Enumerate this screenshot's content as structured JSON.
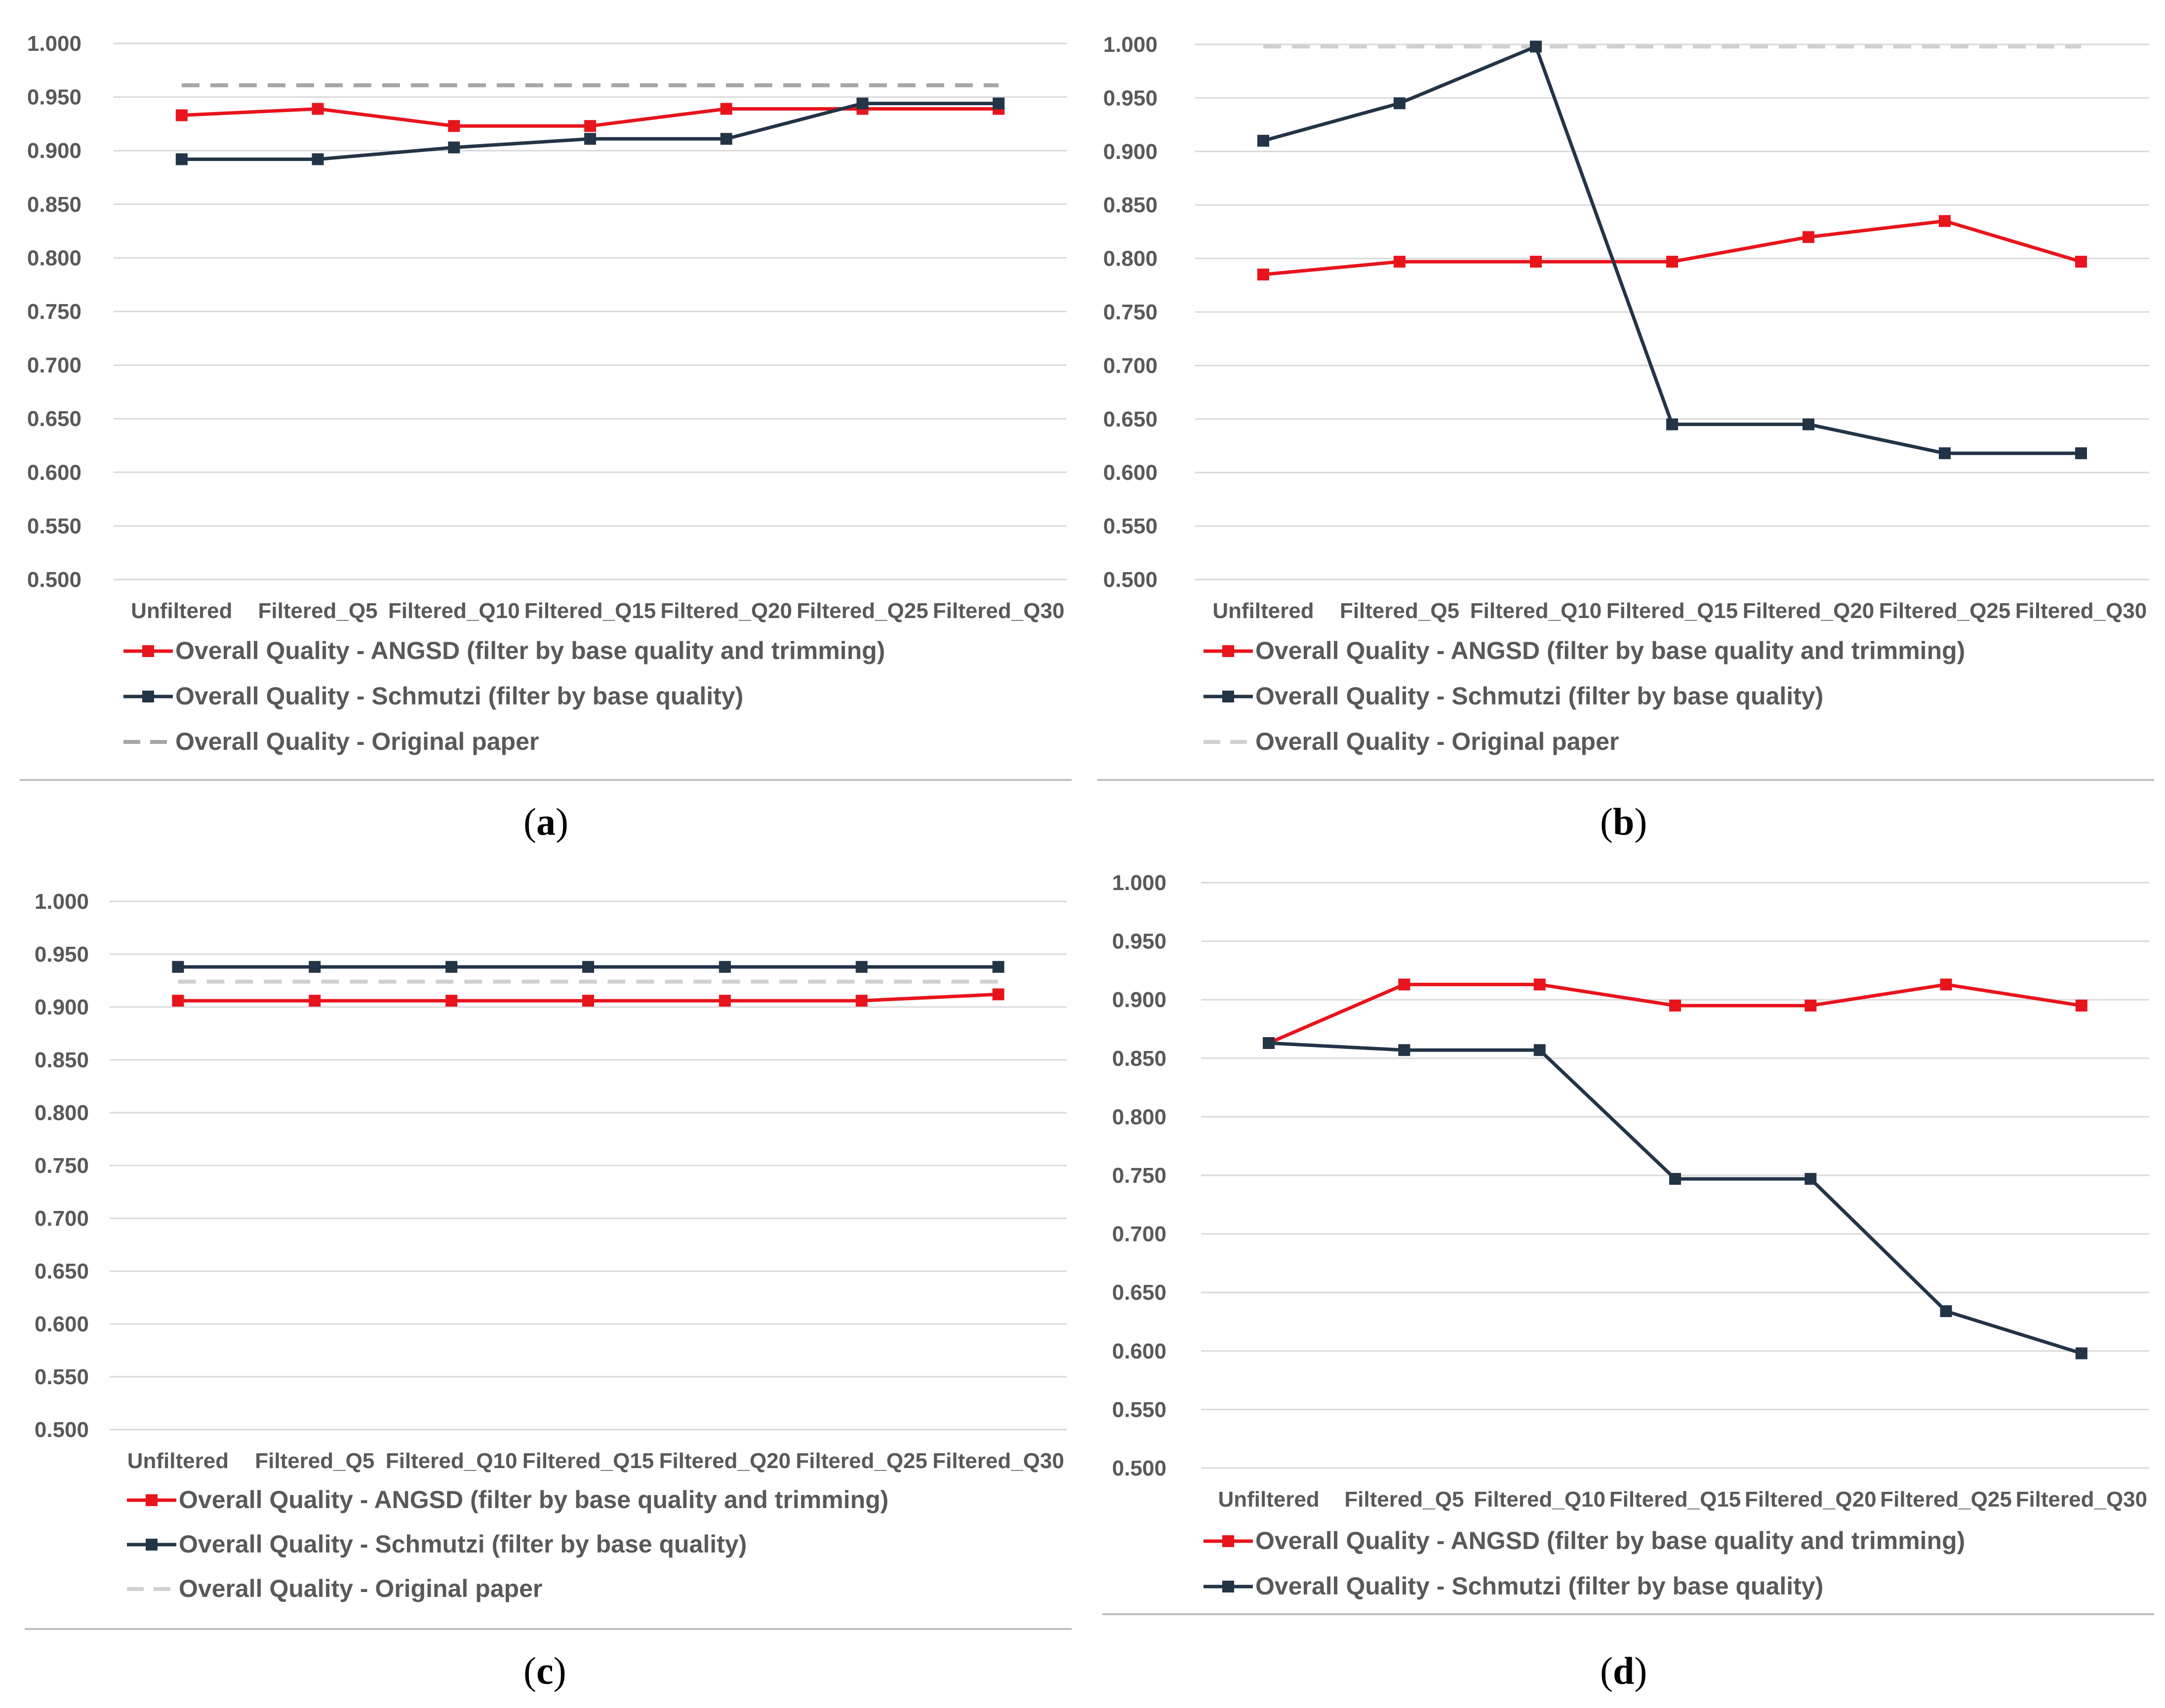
{
  "colors": {
    "angsd": "#e8141c",
    "schmutzi": "#243447",
    "original_a": "#a6a6a6",
    "original_light": "#d0d0d0",
    "grid": "#d9d9d9",
    "separator": "#bfbfbf"
  },
  "chart_data": [
    {
      "id": "a",
      "type": "line",
      "caption": "a",
      "categories": [
        "Unfiltered",
        "Filtered_Q5",
        "Filtered_Q10",
        "Filtered_Q15",
        "Filtered_Q20",
        "Filtered_Q25",
        "Filtered_Q30"
      ],
      "ylim": [
        0.5,
        1.0
      ],
      "yticks": [
        "1.000",
        "0.950",
        "0.900",
        "0.850",
        "0.800",
        "0.750",
        "0.700",
        "0.650",
        "0.600",
        "0.550",
        "0.500"
      ],
      "series": [
        {
          "key": "angsd",
          "name": "Overall Quality - ANGSD (filter by base quality and trimming)",
          "values": [
            0.933,
            0.939,
            0.923,
            0.923,
            0.939,
            0.939,
            0.939
          ]
        },
        {
          "key": "schmutzi",
          "name": "Overall Quality - Schmutzi (filter by base quality)",
          "values": [
            0.892,
            0.892,
            0.903,
            0.911,
            0.911,
            0.944,
            0.944
          ]
        },
        {
          "key": "original",
          "name": "Overall Quality - Original paper",
          "values": [
            0.961,
            0.961,
            0.961,
            0.961,
            0.961,
            0.961,
            0.961
          ],
          "dashed": true,
          "color": "original_a"
        }
      ]
    },
    {
      "id": "b",
      "type": "line",
      "caption": "b",
      "categories": [
        "Unfiltered",
        "Filtered_Q5",
        "Filtered_Q10",
        "Filtered_Q15",
        "Filtered_Q20",
        "Filtered_Q25",
        "Filtered_Q30"
      ],
      "ylim": [
        0.5,
        1.0
      ],
      "yticks": [
        "1.000",
        "0.950",
        "0.900",
        "0.850",
        "0.800",
        "0.750",
        "0.700",
        "0.650",
        "0.600",
        "0.550",
        "0.500"
      ],
      "series": [
        {
          "key": "angsd",
          "name": "Overall Quality - ANGSD (filter by base quality and trimming)",
          "values": [
            0.785,
            0.797,
            0.797,
            0.797,
            0.82,
            0.835,
            0.797
          ]
        },
        {
          "key": "schmutzi",
          "name": "Overall Quality - Schmutzi (filter by base quality)",
          "values": [
            0.91,
            0.945,
            0.998,
            0.645,
            0.645,
            0.618,
            0.618
          ]
        },
        {
          "key": "original",
          "name": "Overall Quality - Original paper",
          "values": [
            0.998,
            0.998,
            0.998,
            0.998,
            0.998,
            0.998,
            0.998
          ],
          "dashed": true,
          "color": "original_light"
        }
      ]
    },
    {
      "id": "c",
      "type": "line",
      "caption": "c",
      "categories": [
        "Unfiltered",
        "Filtered_Q5",
        "Filtered_Q10",
        "Filtered_Q15",
        "Filtered_Q20",
        "Filtered_Q25",
        "Filtered_Q30"
      ],
      "ylim": [
        0.5,
        1.0
      ],
      "yticks": [
        "1.000",
        "0.950",
        "0.900",
        "0.850",
        "0.800",
        "0.750",
        "0.700",
        "0.650",
        "0.600",
        "0.550",
        "0.500"
      ],
      "series": [
        {
          "key": "angsd",
          "name": "Overall Quality - ANGSD (filter by base quality and trimming)",
          "values": [
            0.906,
            0.906,
            0.906,
            0.906,
            0.906,
            0.906,
            0.912
          ]
        },
        {
          "key": "schmutzi",
          "name": "Overall Quality - Schmutzi (filter by base quality)",
          "values": [
            0.938,
            0.938,
            0.938,
            0.938,
            0.938,
            0.938,
            0.938
          ]
        },
        {
          "key": "original",
          "name": "Overall Quality - Original paper",
          "values": [
            0.924,
            0.924,
            0.924,
            0.924,
            0.924,
            0.924,
            0.924
          ],
          "dashed": true,
          "color": "original_light"
        }
      ]
    },
    {
      "id": "d",
      "type": "line",
      "caption": "d",
      "categories": [
        "Unfiltered",
        "Filtered_Q5",
        "Filtered_Q10",
        "Filtered_Q15",
        "Filtered_Q20",
        "Filtered_Q25",
        "Filtered_Q30"
      ],
      "ylim": [
        0.5,
        1.0
      ],
      "yticks": [
        "1.000",
        "0.950",
        "0.900",
        "0.850",
        "0.800",
        "0.750",
        "0.700",
        "0.650",
        "0.600",
        "0.550",
        "0.500"
      ],
      "series": [
        {
          "key": "angsd",
          "name": "Overall Quality - ANGSD (filter by base quality and trimming)",
          "values": [
            0.863,
            0.913,
            0.913,
            0.895,
            0.895,
            0.913,
            0.895
          ]
        },
        {
          "key": "schmutzi",
          "name": "Overall Quality - Schmutzi (filter by base quality)",
          "values": [
            0.863,
            0.857,
            0.857,
            0.747,
            0.747,
            0.634,
            0.598
          ]
        }
      ]
    }
  ]
}
